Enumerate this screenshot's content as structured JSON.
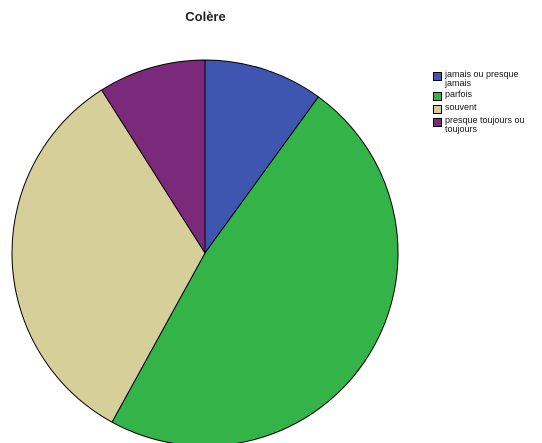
{
  "chart_data": {
    "type": "pie",
    "title": "Colère",
    "categories": [
      "jamais ou presque jamais",
      "parfois",
      "souvent",
      "presque toujours ou toujours"
    ],
    "values": [
      10,
      48,
      33,
      9
    ],
    "colors": [
      "#3f56b0",
      "#34b349",
      "#d6cf9a",
      "#7b2a7b"
    ],
    "legend_position": "top-right"
  }
}
